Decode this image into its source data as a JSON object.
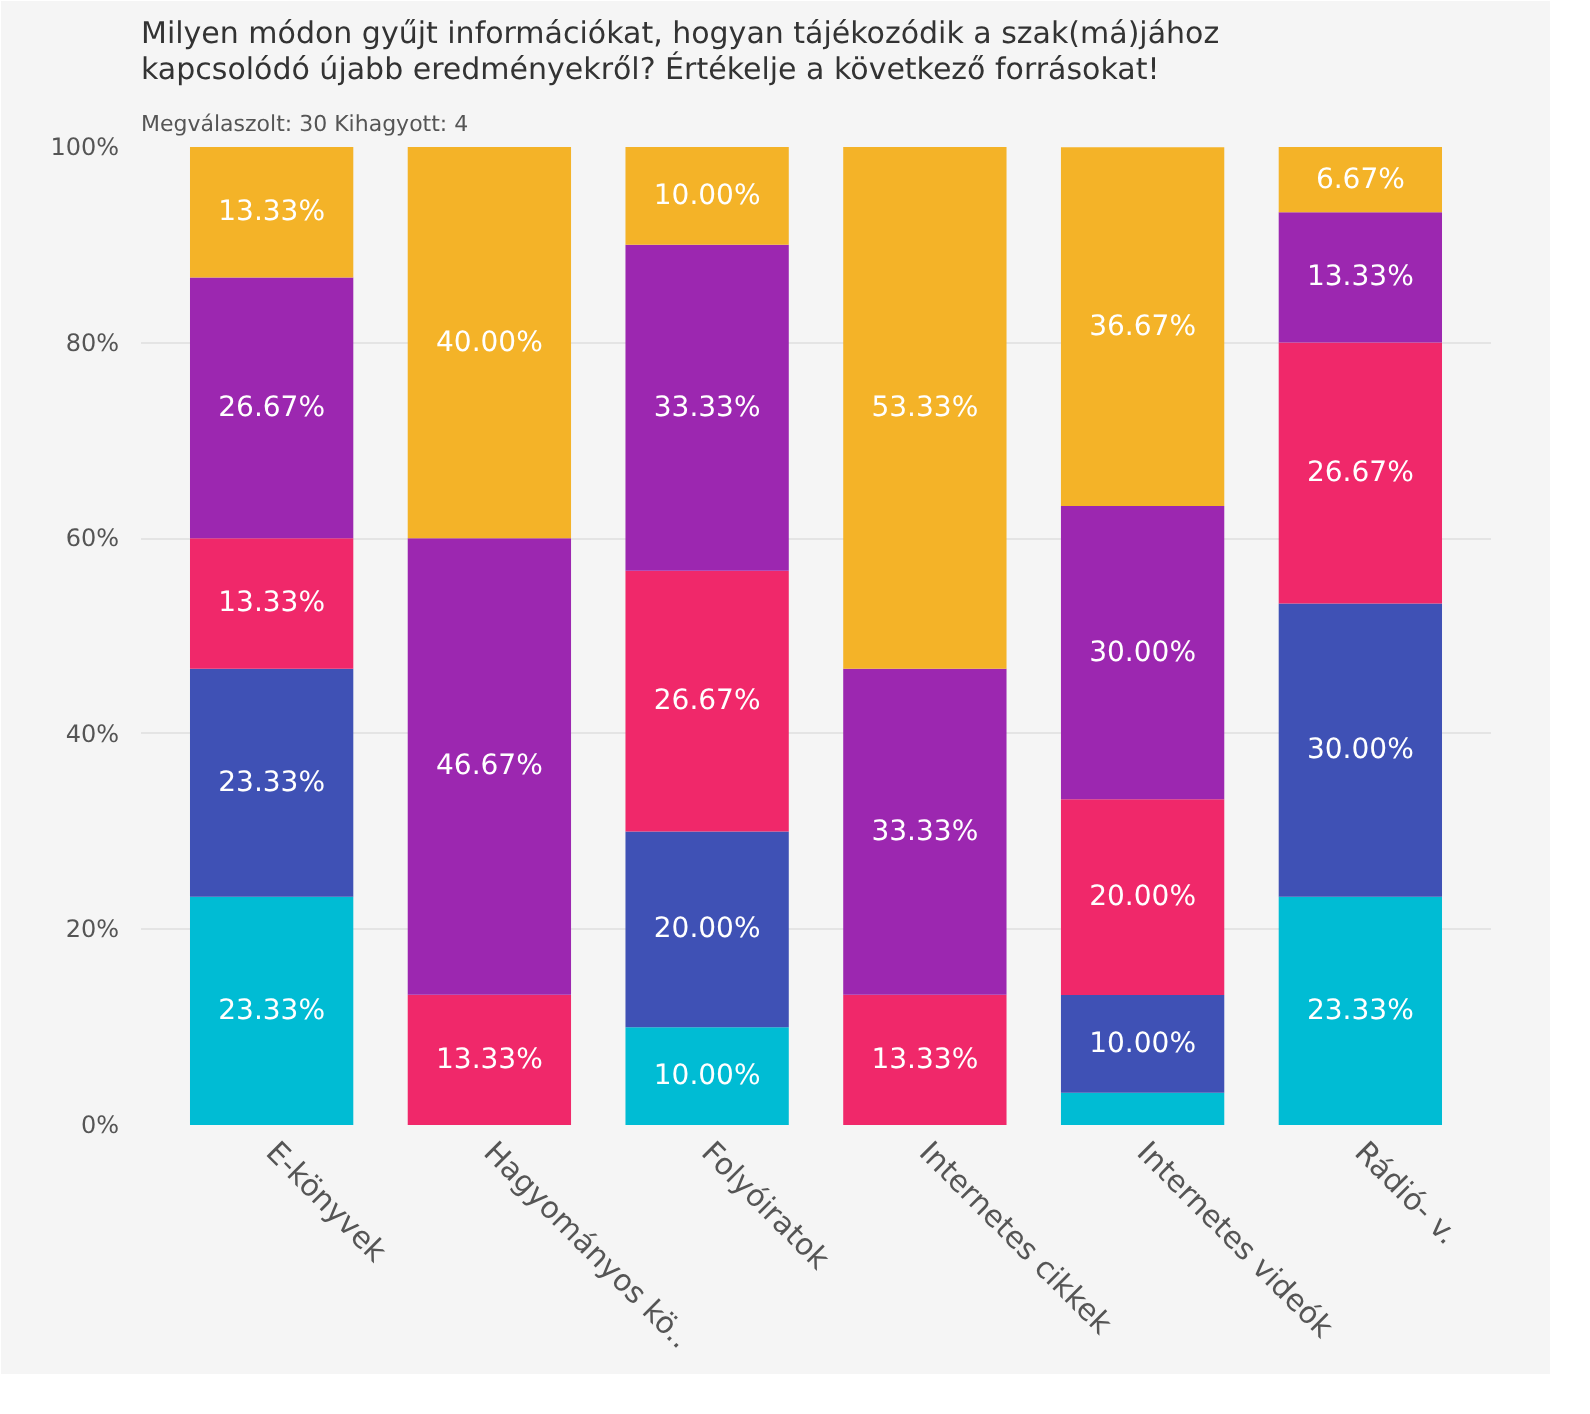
{
  "chart_data": {
    "type": "bar",
    "stacked": true,
    "title": "Milyen módon gyűjt információkat, hogyan tájékozódik a szak(má)jához\nkapcsolódó újabb eredményekről? Értékelje a következő forrásokat!",
    "subtitle": "Megválaszolt: 30     Kihagyott: 4",
    "categories": [
      "E-könyvek",
      "Hagyományos kö..",
      "Folyóiratok",
      "Internetes cikkek",
      "Internetes videók",
      "Rádió- v."
    ],
    "series": [
      {
        "color": "#00bcd4",
        "values": [
          23.33,
          0,
          10,
          0,
          3.3,
          23.33
        ],
        "value_labels": [
          "23.33%",
          null,
          "10.00%",
          null,
          null,
          "23.33%"
        ]
      },
      {
        "color": "#3f51b5",
        "values": [
          23.33,
          0,
          20,
          0,
          10,
          30
        ],
        "value_labels": [
          "23.33%",
          null,
          "20.00%",
          null,
          "10.00%",
          "30.00%"
        ]
      },
      {
        "color": "#f0286a",
        "values": [
          13.33,
          13.33,
          26.67,
          13.33,
          20,
          26.67
        ],
        "value_labels": [
          "13.33%",
          "13.33%",
          "26.67%",
          "13.33%",
          "20.00%",
          "26.67%"
        ]
      },
      {
        "color": "#9c27b0",
        "values": [
          26.67,
          46.67,
          33.33,
          33.33,
          30,
          13.33
        ],
        "value_labels": [
          "26.67%",
          "46.67%",
          "33.33%",
          "33.33%",
          "30.00%",
          "13.33%"
        ]
      },
      {
        "color": "#f4b328",
        "values": [
          13.33,
          40,
          10,
          53.33,
          36.67,
          6.67
        ],
        "value_labels": [
          "13.33%",
          "40.00%",
          "10.00%",
          "53.33%",
          "36.67%",
          "6.67%"
        ]
      }
    ],
    "ylim": [
      0,
      100
    ],
    "yticks": [
      {
        "value": 0,
        "label": "0%"
      },
      {
        "value": 20,
        "label": "20%"
      },
      {
        "value": 40,
        "label": "40%"
      },
      {
        "value": 60,
        "label": "60%"
      },
      {
        "value": 80,
        "label": "80%"
      },
      {
        "value": 100,
        "label": "100%"
      }
    ],
    "grid": "y"
  }
}
